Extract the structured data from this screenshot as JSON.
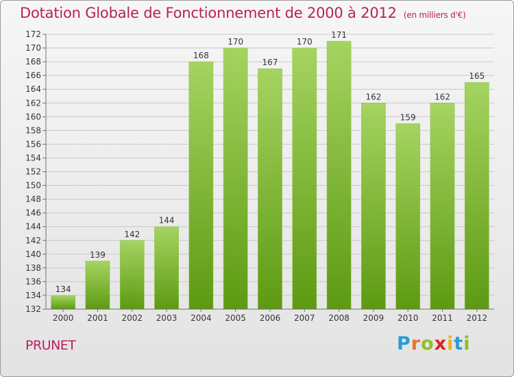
{
  "header": {
    "title": "Dotation Globale de Fonctionnement de 2000 à 2012",
    "unit": "(en milliers d'€)"
  },
  "footer": {
    "commune": "PRUNET",
    "brand": "Proxiti",
    "brand_colors": [
      "#2a9bd6",
      "#e8742a",
      "#8cbf26",
      "#d7261e",
      "#f2b01e",
      "#2a9bd6",
      "#8cbf26"
    ]
  },
  "colors": {
    "title": "#b8205e",
    "bar_light": "#a5d461",
    "bar_dark": "#5d9a12",
    "grid": "#c8c8c8",
    "axis": "#707070"
  },
  "chart_data": {
    "type": "bar",
    "title": "Dotation Globale de Fonctionnement de 2000 à 2012",
    "subtitle": "(en milliers d'€)",
    "categories": [
      "2000",
      "2001",
      "2002",
      "2003",
      "2004",
      "2005",
      "2006",
      "2007",
      "2008",
      "2009",
      "2010",
      "2011",
      "2012"
    ],
    "values": [
      134,
      139,
      142,
      144,
      168,
      170,
      167,
      170,
      171,
      162,
      159,
      162,
      165
    ],
    "ylim": [
      132,
      172
    ],
    "ytick_step": 2,
    "grid": true,
    "data_labels": true
  }
}
